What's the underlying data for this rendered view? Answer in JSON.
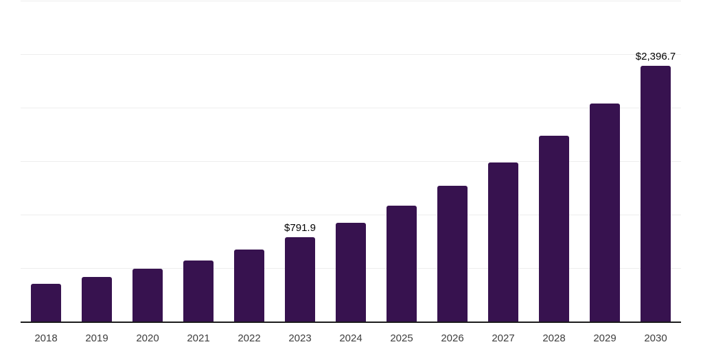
{
  "chart": {
    "background_color": "#ffffff",
    "bar_color": "#37124F",
    "axis_line_color": "#1a1a1a",
    "gridline_color": "#ededed",
    "data_label_color": "#000000",
    "tick_label_color": "#3d3d3d"
  },
  "chart_data": {
    "type": "bar",
    "title": "",
    "xlabel": "",
    "ylabel": "",
    "categories": [
      "2018",
      "2019",
      "2020",
      "2021",
      "2022",
      "2023",
      "2024",
      "2025",
      "2026",
      "2027",
      "2028",
      "2029",
      "2030"
    ],
    "values": [
      356,
      423,
      500,
      577,
      680,
      791.9,
      927.7,
      1086.7,
      1272.9,
      1491.1,
      1746.7,
      2046.1,
      2396.7
    ],
    "data_labels": [
      {
        "category": "2023",
        "text": "$791.9"
      },
      {
        "category": "2030",
        "text": "$2,396.7"
      }
    ],
    "ylim": [
      0,
      3000
    ],
    "gridline_step": 500,
    "grid": "horizontal",
    "y_tick_labels_visible": false,
    "legend": "none"
  }
}
